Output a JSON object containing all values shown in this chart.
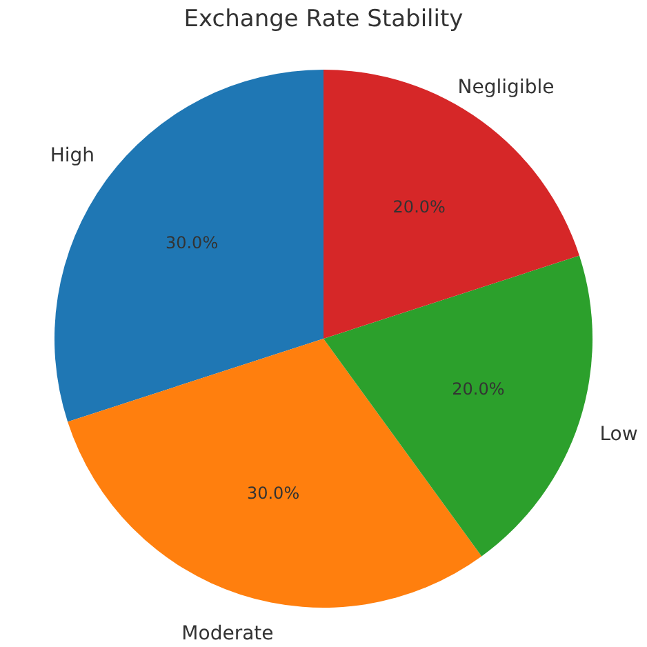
{
  "chart_data": {
    "type": "pie",
    "title": "Exchange Rate Stability",
    "categories": [
      "High",
      "Moderate",
      "Low",
      "Negligible"
    ],
    "values": [
      30,
      30,
      20,
      20
    ],
    "colors": [
      "#1f77b4",
      "#ff7f0e",
      "#2ca02c",
      "#d62728"
    ],
    "value_labels": [
      "30.0%",
      "30.0%",
      "20.0%",
      "20.0%"
    ]
  }
}
